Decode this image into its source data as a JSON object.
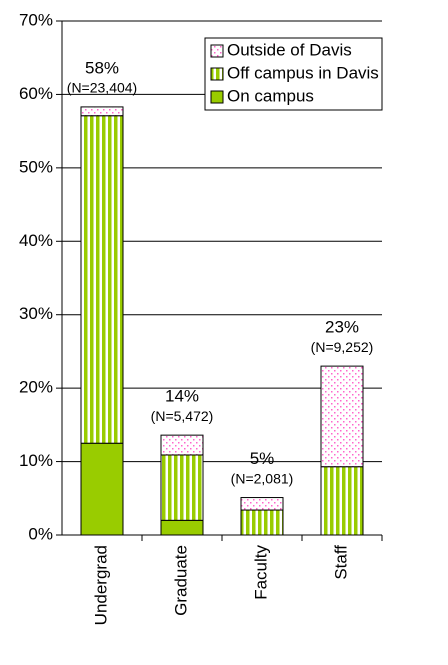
{
  "chart_data": {
    "type": "stacked_bar",
    "categories": [
      "Undergrad",
      "Graduate",
      "Faculty",
      "Staff"
    ],
    "series": [
      {
        "name": "On campus",
        "color": "#99cc00",
        "pattern": "solid",
        "values": [
          12.5,
          2.0,
          0,
          0
        ]
      },
      {
        "name": "Off campus in Davis",
        "color": "#99cc00",
        "pattern": "stripes",
        "values": [
          44.6,
          8.9,
          3.4,
          9.3
        ]
      },
      {
        "name": "Outside of Davis",
        "color": "#ff66cc",
        "pattern": "dots",
        "values": [
          1.2,
          2.7,
          1.7,
          13.7
        ]
      }
    ],
    "total_labels": [
      "58%",
      "14%",
      "5%",
      "23%"
    ],
    "n_labels": [
      "(N=23,404)",
      "(N=5,472)",
      "(N=2,081)",
      "(N=9,252)"
    ],
    "ylim": [
      0,
      70
    ],
    "yticks": [
      {
        "value": 0,
        "label": "0%"
      },
      {
        "value": 10,
        "label": "10%"
      },
      {
        "value": 20,
        "label": "20%"
      },
      {
        "value": 30,
        "label": "30%"
      },
      {
        "value": 40,
        "label": "40%"
      },
      {
        "value": 50,
        "label": "50%"
      },
      {
        "value": 60,
        "label": "60%"
      },
      {
        "value": 70,
        "label": "70%"
      }
    ],
    "grid": true,
    "legend": "upper right"
  }
}
